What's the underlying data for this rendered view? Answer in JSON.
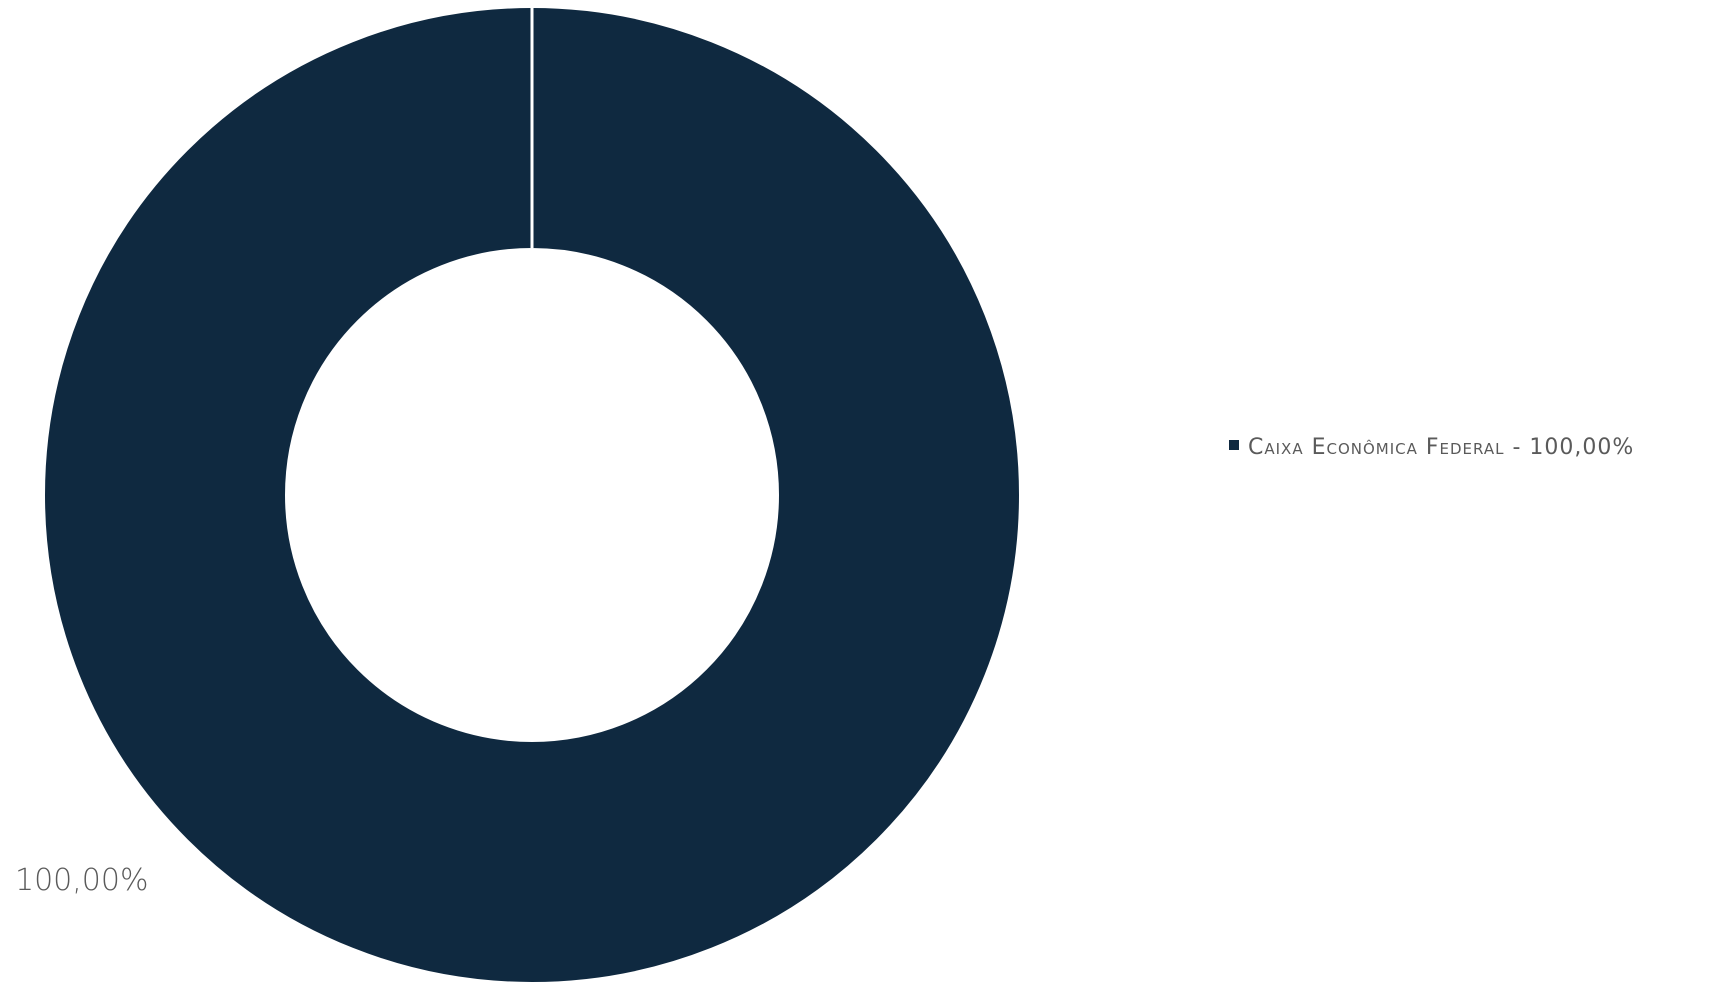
{
  "chart_data": {
    "type": "pie",
    "variant": "donut",
    "title": "",
    "series": [
      {
        "name": "Caixa Econômica Federal",
        "value": 100.0,
        "data_label": "100,00%",
        "legend_label": "Caixa Econômica Federal - 100,00%",
        "color": "#0f2940"
      }
    ],
    "legend_position": "right",
    "data_label_position": "outside-bottom-left"
  }
}
